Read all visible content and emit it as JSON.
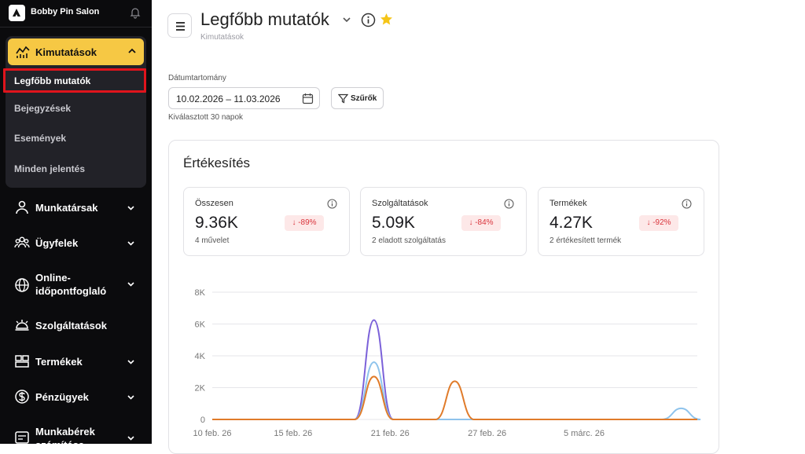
{
  "sidebar": {
    "brand": "Bobby Pin Salon",
    "active_section": {
      "label": "Kimutatások",
      "icon": "analytics-icon",
      "expanded": true
    },
    "sub_items": [
      {
        "label": "Legfőbb mutatók",
        "current": true
      },
      {
        "label": "Bejegyzések",
        "current": false
      },
      {
        "label": "Események",
        "current": false
      },
      {
        "label": "Minden jelentés",
        "current": false
      }
    ],
    "nav": [
      {
        "label": "Munkatársak",
        "icon": "person-icon",
        "has_chevron": true
      },
      {
        "label": "Ügyfelek",
        "icon": "people-icon",
        "has_chevron": true
      },
      {
        "label": "Online-\nidőpontfoglaló",
        "icon": "globe-icon",
        "has_chevron": true
      },
      {
        "label": "Szolgáltatások",
        "icon": "service-bell-icon",
        "has_chevron": false
      },
      {
        "label": "Termékek",
        "icon": "box-icon",
        "has_chevron": true
      },
      {
        "label": "Pénzügyek",
        "icon": "dollar-icon",
        "has_chevron": true
      },
      {
        "label": "Munkabérek\nszámítása",
        "icon": "payroll-icon",
        "has_chevron": true
      }
    ]
  },
  "header": {
    "title": "Legfőbb mutatók",
    "breadcrumb": "Kimutatások",
    "favorite_color": "#f5c518"
  },
  "filters": {
    "range_label": "Dátumtartomány",
    "range_value": "10.02.2026 – 11.03.2026",
    "filter_button": "Szűrők",
    "range_hint": "Kiválasztott 30 napok"
  },
  "sales": {
    "title": "Értékesítés",
    "metrics": [
      {
        "name": "Összesen",
        "value": "9.36K",
        "change": "↓ -89%",
        "sub": "4 művelet"
      },
      {
        "name": "Szolgáltatások",
        "value": "5.09K",
        "change": "↓ -84%",
        "sub": "2 eladott szolgáltatás"
      },
      {
        "name": "Termékek",
        "value": "4.27K",
        "change": "↓ -92%",
        "sub": "2 értékesített termék"
      }
    ]
  },
  "chart_data": {
    "type": "area",
    "x_ticks": [
      "10 feb. 26",
      "15 feb. 26",
      "21 feb. 26",
      "27 feb. 26",
      "5 márc. 26"
    ],
    "y_ticks": [
      "8K",
      "6K",
      "4K",
      "2K",
      "0"
    ],
    "ylim": [
      0,
      8000
    ],
    "grid": true,
    "series": [
      {
        "color": "#7b61d9",
        "points": [
          {
            "date": "2026-02-20",
            "value": 6250
          }
        ]
      },
      {
        "color": "#8ec3ec",
        "points": [
          {
            "date": "2026-02-20",
            "value": 3600
          },
          {
            "date": "2026-03-11",
            "value": 700
          }
        ]
      },
      {
        "color": "#e07b2a",
        "points": [
          {
            "date": "2026-02-20",
            "value": 2700
          },
          {
            "date": "2026-02-25",
            "value": 2400
          }
        ]
      }
    ]
  },
  "colors": {
    "accent": "#f6c844",
    "sidebar_bg": "#0b0b0d",
    "highlight_outline": "#e0141c",
    "negative_badge_text": "#d9333b",
    "negative_badge_bg": "#fde8e8"
  }
}
